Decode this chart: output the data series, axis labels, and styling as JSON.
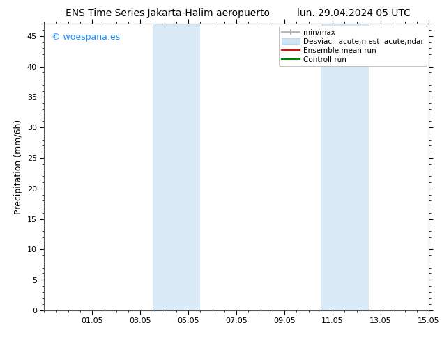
{
  "title_left": "ENS Time Series Jakarta-Halim aeropuerto",
  "title_right": "lun. 29.04.2024 05 UTC",
  "ylabel": "Precipitation (mm/6h)",
  "ylim": [
    0,
    47
  ],
  "yticks": [
    0,
    5,
    10,
    15,
    20,
    25,
    30,
    35,
    40,
    45
  ],
  "xtick_labels": [
    "01.05",
    "03.05",
    "05.05",
    "07.05",
    "09.05",
    "11.05",
    "13.05",
    "15.05"
  ],
  "xtick_positions": [
    2,
    4,
    6,
    8,
    10,
    12,
    14,
    16
  ],
  "xlim": [
    0,
    16
  ],
  "shaded_bands": [
    {
      "x_start": 4.5,
      "x_end": 6.5
    },
    {
      "x_start": 11.5,
      "x_end": 13.5
    }
  ],
  "shade_color": "#daeaf7",
  "watermark_text": "© woespana.es",
  "watermark_color": "#1e90ff",
  "legend_label_minmax": "min/max",
  "legend_label_std": "Desviaci  acute;n est  acute;ndar",
  "legend_label_ens": "Ensemble mean run",
  "legend_label_ctrl": "Controll run",
  "color_minmax": "#aaaaaa",
  "color_std": "#cde4f5",
  "color_ens": "#ff0000",
  "color_ctrl": "#008000",
  "bg_color": "#ffffff",
  "tick_fontsize": 8,
  "label_fontsize": 9,
  "title_fontsize": 10,
  "legend_fontsize": 7.5
}
